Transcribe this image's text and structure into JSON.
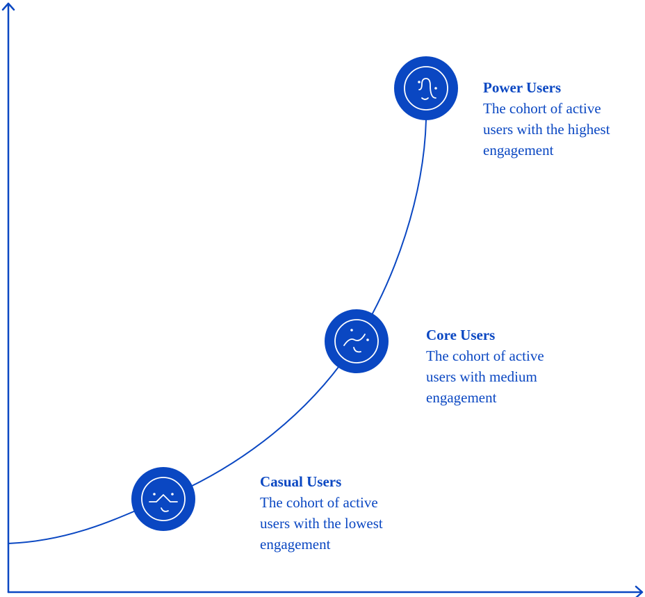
{
  "colors": {
    "accent": "#0a47c2",
    "icon_stroke": "#ffffff"
  },
  "stages": [
    {
      "title": "Casual Users",
      "description": "The cohort of active users with the lowest engagement",
      "icon": "face-wave-icon"
    },
    {
      "title": "Core Users",
      "description": "The cohort of active users with medium engagement",
      "icon": "face-rising-line-icon"
    },
    {
      "title": "Power Users",
      "description": "The cohort of active users with the highest engagement",
      "icon": "face-peak-icon"
    }
  ]
}
